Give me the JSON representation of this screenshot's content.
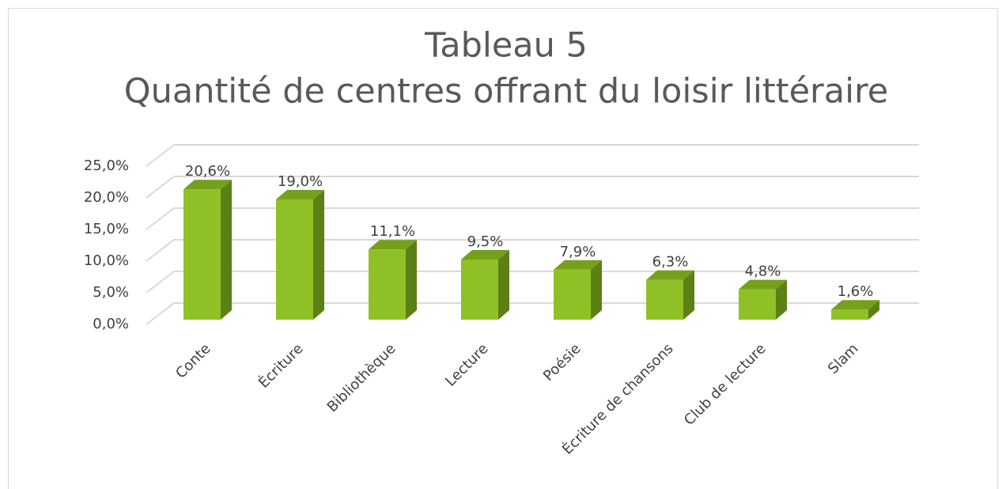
{
  "chart_data": {
    "type": "bar3d",
    "title": [
      "Tableau 5",
      "Quantité de centres offrant du loisir littéraire"
    ],
    "categories": [
      "Conte",
      "Écriture",
      "Bibliothèque",
      "Lecture",
      "Poésie",
      "Écriture de chansons",
      "Club de lecture",
      "Slam"
    ],
    "values": [
      20.6,
      19.0,
      11.1,
      9.5,
      7.9,
      6.3,
      4.8,
      1.6
    ],
    "value_labels": [
      "20,6%",
      "19,0%",
      "11,1%",
      "9,5%",
      "7,9%",
      "6,3%",
      "4,8%",
      "1,6%"
    ],
    "color": "#8fc126",
    "ylim": [
      0,
      25
    ],
    "yticks": [
      {
        "value": 0,
        "label": "0,0%"
      },
      {
        "value": 5,
        "label": "5,0%"
      },
      {
        "value": 10,
        "label": "10,0%"
      },
      {
        "value": 15,
        "label": "15,0%"
      },
      {
        "value": 20,
        "label": "20,0%"
      },
      {
        "value": 25,
        "label": "25,0%"
      }
    ],
    "grid": true
  }
}
